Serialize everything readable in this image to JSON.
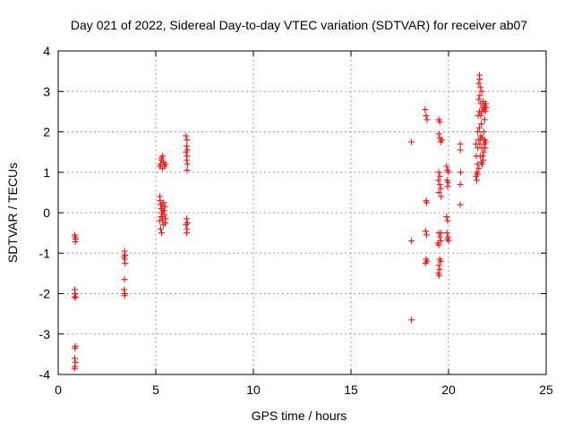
{
  "chart_data": {
    "type": "scatter",
    "title": "Day 021 of 2022, Sidereal Day-to-day VTEC variation (SDTVAR) for receiver ab07",
    "xlabel": "GPS time / hours",
    "ylabel": "SDTVAR / TECUs",
    "xlim": [
      0,
      25
    ],
    "ylim": [
      -4,
      4
    ],
    "xticks": [
      0,
      5,
      10,
      15,
      20,
      25
    ],
    "yticks": [
      -4,
      -3,
      -2,
      -1,
      0,
      1,
      2,
      3,
      4
    ],
    "grid": true,
    "marker": "+",
    "color": "#ff0000",
    "series": [
      {
        "name": "SDTVAR",
        "points": [
          [
            0.85,
            -0.55
          ],
          [
            0.87,
            -0.6
          ],
          [
            0.9,
            -0.65
          ],
          [
            0.88,
            -0.72
          ],
          [
            0.85,
            -1.9
          ],
          [
            0.87,
            -2.0
          ],
          [
            0.9,
            -2.08
          ],
          [
            0.83,
            -2.1
          ],
          [
            0.88,
            -3.3
          ],
          [
            0.86,
            -3.35
          ],
          [
            0.85,
            -3.6
          ],
          [
            0.88,
            -3.7
          ],
          [
            0.86,
            -3.8
          ],
          [
            0.84,
            -3.85
          ],
          [
            3.4,
            -0.95
          ],
          [
            3.42,
            -1.05
          ],
          [
            3.38,
            -1.1
          ],
          [
            3.4,
            -1.15
          ],
          [
            3.43,
            -1.25
          ],
          [
            3.4,
            -1.65
          ],
          [
            3.38,
            -1.9
          ],
          [
            3.42,
            -2.0
          ],
          [
            3.4,
            -2.05
          ],
          [
            5.2,
            1.15
          ],
          [
            5.25,
            1.2
          ],
          [
            5.3,
            1.3
          ],
          [
            5.35,
            1.4
          ],
          [
            5.4,
            1.25
          ],
          [
            5.45,
            1.15
          ],
          [
            5.5,
            1.2
          ],
          [
            5.35,
            1.1
          ],
          [
            5.28,
            1.35
          ],
          [
            5.2,
            0.4
          ],
          [
            5.22,
            0.3
          ],
          [
            5.25,
            0.2
          ],
          [
            5.28,
            0.1
          ],
          [
            5.3,
            0.0
          ],
          [
            5.33,
            -0.1
          ],
          [
            5.35,
            -0.2
          ],
          [
            5.38,
            -0.3
          ],
          [
            5.4,
            0.25
          ],
          [
            5.42,
            0.05
          ],
          [
            5.45,
            -0.05
          ],
          [
            5.47,
            0.15
          ],
          [
            5.5,
            -0.15
          ],
          [
            5.25,
            -0.4
          ],
          [
            5.3,
            -0.5
          ],
          [
            5.2,
            -0.2
          ],
          [
            5.33,
            0.2
          ],
          [
            5.48,
            -0.25
          ],
          [
            5.27,
            -0.1
          ],
          [
            5.37,
            0.05
          ],
          [
            6.55,
            1.9
          ],
          [
            6.6,
            1.8
          ],
          [
            6.58,
            1.65
          ],
          [
            6.62,
            1.55
          ],
          [
            6.55,
            1.5
          ],
          [
            6.6,
            1.4
          ],
          [
            6.58,
            1.3
          ],
          [
            6.62,
            1.2
          ],
          [
            6.6,
            1.05
          ],
          [
            6.58,
            -0.15
          ],
          [
            6.62,
            -0.25
          ],
          [
            6.55,
            -0.3
          ],
          [
            6.6,
            -0.4
          ],
          [
            6.58,
            -0.5
          ],
          [
            18.1,
            1.75
          ],
          [
            18.1,
            -0.7
          ],
          [
            18.1,
            -2.65
          ],
          [
            18.8,
            2.55
          ],
          [
            18.85,
            2.4
          ],
          [
            18.9,
            2.3
          ],
          [
            18.85,
            0.3
          ],
          [
            18.88,
            0.25
          ],
          [
            18.82,
            -0.45
          ],
          [
            18.87,
            -0.55
          ],
          [
            18.85,
            -1.15
          ],
          [
            18.9,
            -1.2
          ],
          [
            18.82,
            -1.25
          ],
          [
            19.5,
            2.3
          ],
          [
            19.55,
            2.25
          ],
          [
            19.5,
            1.95
          ],
          [
            19.55,
            1.85
          ],
          [
            19.6,
            1.75
          ],
          [
            19.65,
            1.8
          ],
          [
            19.5,
            1.0
          ],
          [
            19.55,
            0.9
          ],
          [
            19.48,
            0.8
          ],
          [
            19.55,
            0.7
          ],
          [
            19.6,
            0.6
          ],
          [
            19.5,
            0.5
          ],
          [
            19.62,
            0.4
          ],
          [
            19.5,
            -0.5
          ],
          [
            19.55,
            -0.6
          ],
          [
            19.6,
            -0.7
          ],
          [
            19.45,
            -0.75
          ],
          [
            19.5,
            -0.8
          ],
          [
            19.55,
            -1.15
          ],
          [
            19.6,
            -1.2
          ],
          [
            19.5,
            -1.3
          ],
          [
            19.55,
            -1.4
          ],
          [
            19.48,
            -1.5
          ],
          [
            19.52,
            -1.55
          ],
          [
            19.62,
            -0.5
          ],
          [
            19.9,
            1.15
          ],
          [
            19.95,
            1.05
          ],
          [
            20.0,
            1.0
          ],
          [
            19.92,
            0.8
          ],
          [
            19.98,
            0.75
          ],
          [
            19.95,
            0.65
          ],
          [
            19.9,
            -0.1
          ],
          [
            19.95,
            -0.2
          ],
          [
            19.92,
            -0.5
          ],
          [
            19.98,
            -0.6
          ],
          [
            19.95,
            -0.65
          ],
          [
            20.0,
            -0.7
          ],
          [
            20.6,
            1.7
          ],
          [
            20.6,
            1.55
          ],
          [
            20.62,
            1.0
          ],
          [
            20.6,
            0.7
          ],
          [
            20.6,
            0.2
          ],
          [
            21.4,
            1.7
          ],
          [
            21.42,
            1.4
          ],
          [
            21.45,
            1.0
          ],
          [
            21.4,
            0.9
          ],
          [
            21.45,
            0.8
          ],
          [
            21.5,
            0.95
          ],
          [
            21.5,
            1.6
          ],
          [
            21.5,
            2.0
          ],
          [
            21.52,
            2.4
          ],
          [
            21.55,
            2.8
          ],
          [
            21.55,
            3.2
          ],
          [
            21.58,
            3.4
          ],
          [
            21.6,
            3.3
          ],
          [
            21.62,
            3.1
          ],
          [
            21.6,
            2.9
          ],
          [
            21.65,
            2.7
          ],
          [
            21.7,
            2.5
          ],
          [
            21.68,
            2.2
          ],
          [
            21.65,
            1.9
          ],
          [
            21.62,
            1.8
          ],
          [
            21.7,
            1.6
          ],
          [
            21.75,
            1.4
          ],
          [
            21.72,
            1.2
          ],
          [
            21.78,
            1.3
          ],
          [
            21.8,
            1.5
          ],
          [
            21.82,
            1.7
          ],
          [
            21.85,
            1.8
          ],
          [
            21.8,
            2.0
          ],
          [
            21.85,
            2.3
          ],
          [
            21.88,
            2.5
          ],
          [
            21.9,
            2.7
          ],
          [
            21.85,
            2.65
          ],
          [
            21.92,
            2.6
          ],
          [
            21.88,
            1.6
          ],
          [
            21.9,
            1.75
          ],
          [
            21.6,
            1.7
          ],
          [
            21.58,
            2.1
          ],
          [
            21.55,
            1.1
          ],
          [
            21.65,
            2.4
          ],
          [
            21.75,
            2.6
          ],
          [
            21.7,
            3.0
          ],
          [
            21.58,
            2.5
          ],
          [
            21.52,
            1.8
          ],
          [
            21.48,
            1.2
          ],
          [
            21.62,
            1.4
          ],
          [
            21.68,
            1.25
          ],
          [
            21.82,
            2.55
          ],
          [
            21.78,
            2.75
          ],
          [
            21.72,
            1.85
          ]
        ]
      }
    ]
  }
}
